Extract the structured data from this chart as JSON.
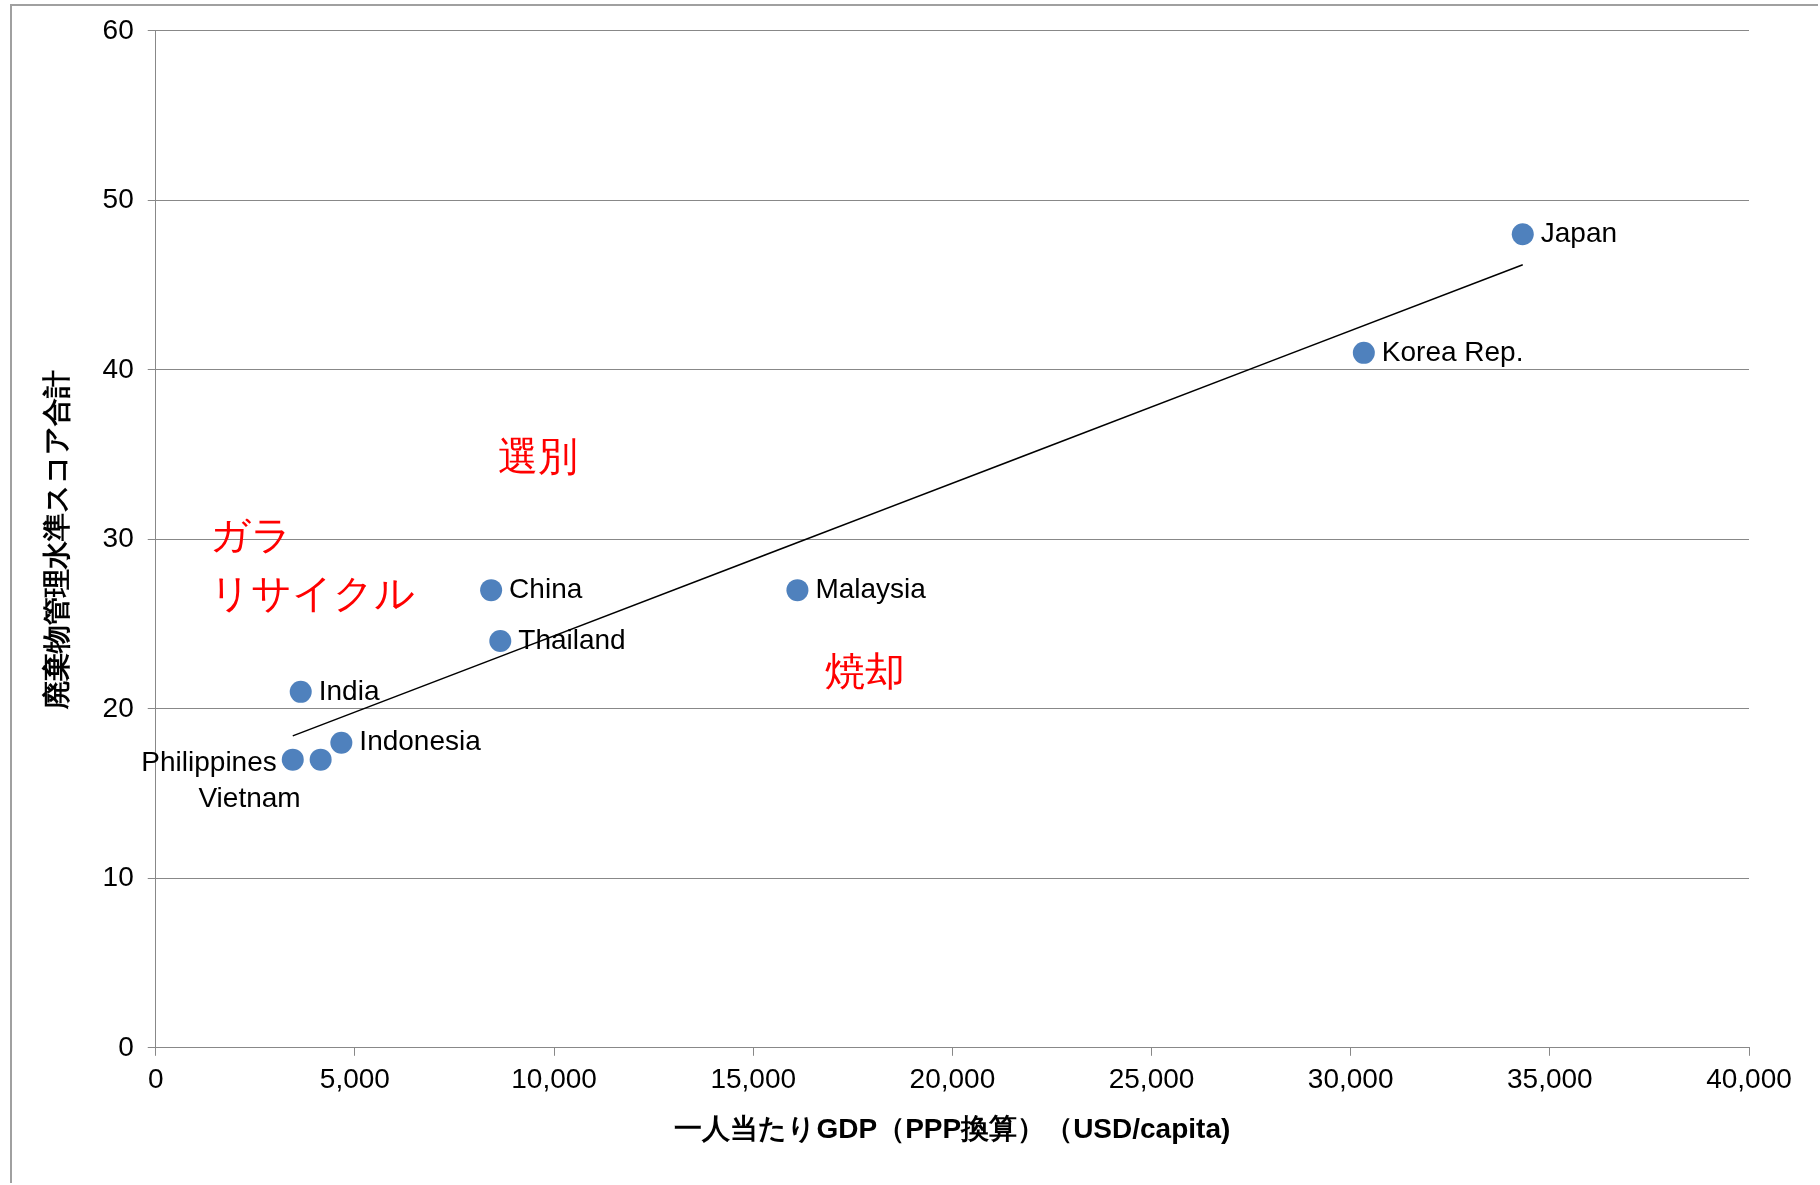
{
  "chart_data": {
    "type": "scatter",
    "xlabel": "一人当たりGDP（PPP換算）（USD/capita)",
    "ylabel": "廃棄物管理水準スコア合計",
    "xlim": [
      0,
      40000
    ],
    "ylim": [
      0,
      60
    ],
    "xticks": [
      0,
      {
        "value": 5000,
        "label": "5,000"
      },
      {
        "value": 10000,
        "label": "10,000"
      },
      {
        "value": 15000,
        "label": "15,000"
      },
      {
        "value": 20000,
        "label": "20,000"
      },
      {
        "value": 25000,
        "label": "25,000"
      },
      {
        "value": 30000,
        "label": "30,000"
      },
      {
        "value": 35000,
        "label": "35,000"
      },
      {
        "value": 40000,
        "label": "40,000"
      }
    ],
    "yticks": [
      0,
      10,
      20,
      30,
      40,
      50,
      60
    ],
    "grid": "y",
    "legend": false,
    "marker": "circle",
    "series": [
      {
        "type": "scatter",
        "color": "#4f81bd",
        "x": [
          34320,
          30330,
          16110,
          8420,
          8650,
          3640,
          4660,
          3440,
          4140
        ],
        "values": [
          48,
          41,
          27,
          27,
          24,
          21,
          18,
          17,
          17
        ]
      },
      {
        "type": "line",
        "color": "#000000",
        "x": [
          3440,
          34320
        ],
        "values": [
          18.4,
          46.2
        ],
        "marker": "none"
      }
    ],
    "annotations": [
      {
        "text": "Japan",
        "x": 34320,
        "y": 48
      },
      {
        "text": "Korea Rep.",
        "x": 30330,
        "y": 41
      },
      {
        "text": "Malaysia",
        "x": 16110,
        "y": 27
      },
      {
        "text": "China",
        "x": 8420,
        "y": 27
      },
      {
        "text": "Thailand",
        "x": 8650,
        "y": 24
      },
      {
        "text": "India",
        "x": 3640,
        "y": 21
      },
      {
        "text": "Indonesia",
        "x": 4660,
        "y": 18
      },
      {
        "text": "Philippines",
        "x": 3440,
        "y": 17
      },
      {
        "text": "Vietnam",
        "x": 4140,
        "y": 17
      },
      "選別",
      "ガラ",
      "リサイクル",
      "焼却"
    ]
  }
}
